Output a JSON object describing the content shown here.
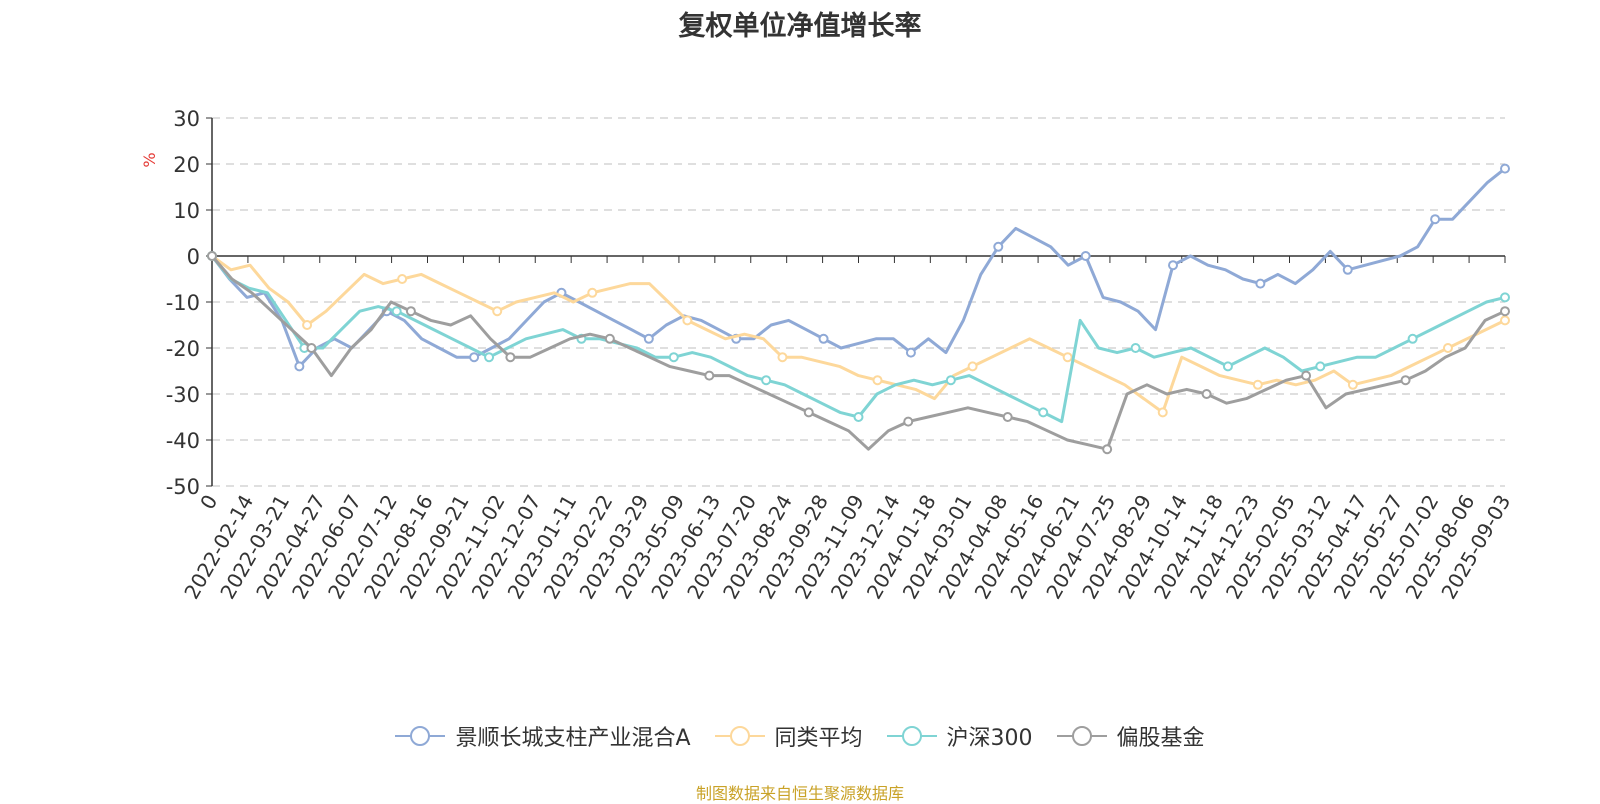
{
  "chart_data": {
    "type": "line",
    "title": "复权单位净值增长率",
    "ylabel": "%",
    "ylim": [
      -50,
      30
    ],
    "yticks": [
      "30",
      "20",
      "10",
      "0",
      "-10",
      "-20",
      "-30",
      "-40",
      "-50"
    ],
    "x_start_label": "0",
    "x_tick_labels": [
      "2022-02-14",
      "2022-03-21",
      "2022-04-27",
      "2022-06-07",
      "2022-07-12",
      "2022-08-16",
      "2022-09-21",
      "2022-11-02",
      "2022-12-07",
      "2023-01-11",
      "2023-02-22",
      "2023-03-29",
      "2023-05-09",
      "2023-06-13",
      "2023-07-20",
      "2023-08-24",
      "2023-09-28",
      "2023-11-09",
      "2023-12-14",
      "2024-01-18",
      "2024-03-01",
      "2024-04-08",
      "2024-05-16",
      "2024-06-21",
      "2024-07-25",
      "2024-08-29",
      "2024-10-14",
      "2024-11-18",
      "2024-12-23",
      "2025-02-05",
      "2025-03-12",
      "2025-04-17",
      "2025-05-27",
      "2025-07-02",
      "2025-08-06",
      "2025-09-03"
    ],
    "grid": "dashed horizontal",
    "legend_position": "bottom",
    "series": [
      {
        "name": "景顺长城支柱产业混合A",
        "color": "#8fa9d6",
        "values": [
          0,
          -5,
          -9,
          -8,
          -14,
          -24,
          -20,
          -18,
          -20,
          -16,
          -12,
          -14,
          -18,
          -20,
          -22,
          -22,
          -20,
          -18,
          -14,
          -10,
          -8,
          -10,
          -12,
          -14,
          -16,
          -18,
          -15,
          -13,
          -14,
          -16,
          -18,
          -18,
          -15,
          -14,
          -16,
          -18,
          -20,
          -19,
          -18,
          -18,
          -21,
          -18,
          -21,
          -14,
          -4,
          2,
          6,
          4,
          2,
          -2,
          0,
          -9,
          -10,
          -12,
          -16,
          -2,
          0,
          -2,
          -3,
          -5,
          -6,
          -4,
          -6,
          -3,
          1,
          -3,
          -2,
          -1,
          0,
          2,
          8,
          8,
          12,
          16,
          19
        ]
      },
      {
        "name": "同类平均",
        "color": "#fdd89b",
        "values": [
          0,
          -3,
          -2,
          -7,
          -10,
          -15,
          -12,
          -8,
          -4,
          -6,
          -5,
          -4,
          -6,
          -8,
          -10,
          -12,
          -10,
          -9,
          -8,
          -10,
          -8,
          -7,
          -6,
          -6,
          -10,
          -14,
          -16,
          -18,
          -17,
          -18,
          -22,
          -22,
          -23,
          -24,
          -26,
          -27,
          -28,
          -29,
          -31,
          -26,
          -24,
          -22,
          -20,
          -18,
          -20,
          -22,
          -24,
          -26,
          -28,
          -31,
          -34,
          -22,
          -24,
          -26,
          -27,
          -28,
          -27,
          -28,
          -27,
          -25,
          -28,
          -27,
          -26,
          -24,
          -22,
          -20,
          -18,
          -16,
          -14
        ]
      },
      {
        "name": "沪深300",
        "color": "#7fd4d4",
        "values": [
          0,
          -5,
          -7,
          -8,
          -14,
          -20,
          -20,
          -16,
          -12,
          -11,
          -12,
          -14,
          -16,
          -18,
          -20,
          -22,
          -20,
          -18,
          -17,
          -16,
          -18,
          -18,
          -19,
          -20,
          -22,
          -22,
          -21,
          -22,
          -24,
          -26,
          -27,
          -28,
          -30,
          -32,
          -34,
          -35,
          -30,
          -28,
          -27,
          -28,
          -27,
          -26,
          -28,
          -30,
          -32,
          -34,
          -36,
          -14,
          -20,
          -21,
          -20,
          -22,
          -21,
          -20,
          -22,
          -24,
          -22,
          -20,
          -22,
          -25,
          -24,
          -23,
          -22,
          -22,
          -20,
          -18,
          -16,
          -14,
          -12,
          -10,
          -9
        ]
      },
      {
        "name": "偏股基金",
        "color": "#9e9e9e",
        "values": [
          0,
          -5,
          -8,
          -12,
          -16,
          -20,
          -26,
          -20,
          -16,
          -10,
          -12,
          -14,
          -15,
          -13,
          -18,
          -22,
          -22,
          -20,
          -18,
          -17,
          -18,
          -20,
          -22,
          -24,
          -25,
          -26,
          -26,
          -28,
          -30,
          -32,
          -34,
          -36,
          -38,
          -42,
          -38,
          -36,
          -35,
          -34,
          -33,
          -34,
          -35,
          -36,
          -38,
          -40,
          -41,
          -42,
          -30,
          -28,
          -30,
          -29,
          -30,
          -32,
          -31,
          -29,
          -27,
          -26,
          -33,
          -30,
          -29,
          -28,
          -27,
          -25,
          -22,
          -20,
          -14,
          -12
        ]
      }
    ]
  },
  "source_note": "制图数据来自恒生聚源数据库"
}
